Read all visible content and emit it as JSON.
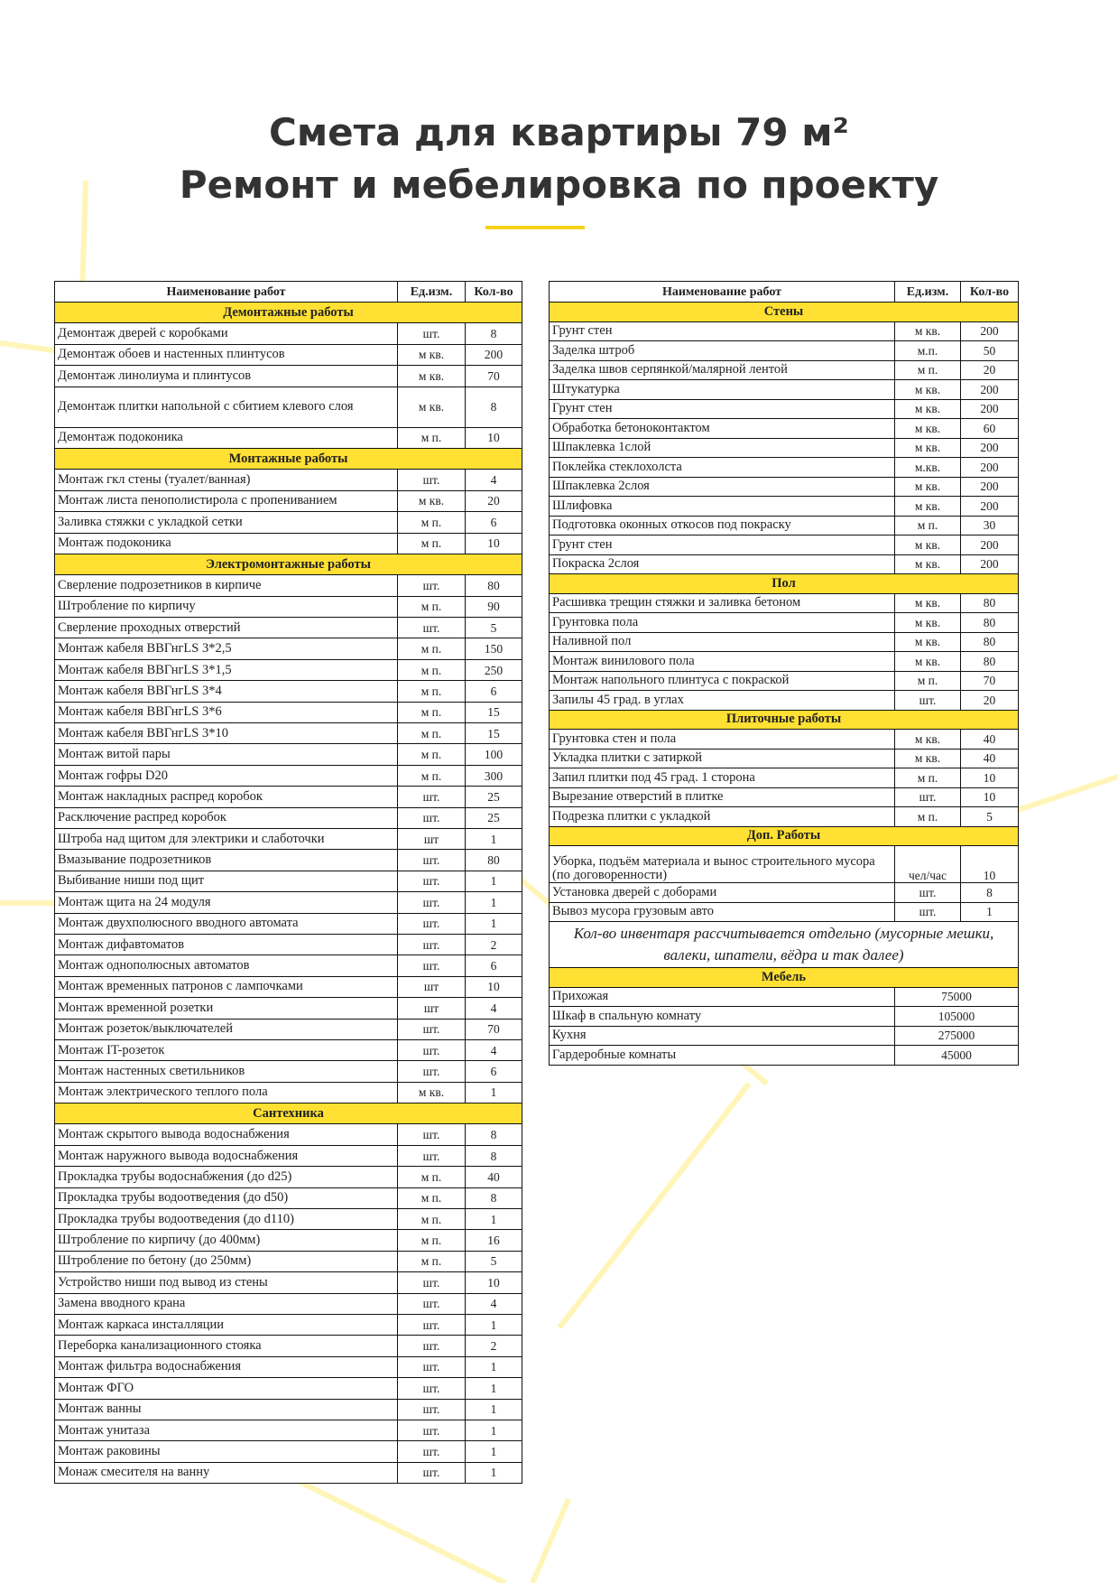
{
  "title_line1": "Смета для квартиры 79 м²",
  "title_line2": "Ремонт и мебелировка по проекту",
  "colors": {
    "accent_yellow": "#ffe033",
    "title": "#333333",
    "bg_lines": "#fff5b8"
  },
  "headers": {
    "name": "Наименование работ",
    "unit": "Ед.изм.",
    "qty": "Кол-во"
  },
  "left_sections": [
    {
      "title": "Демонтажные работы",
      "rows": [
        [
          "Демонтаж дверей с коробками",
          "шт.",
          "8"
        ],
        [
          "Демонтаж обоев и настенных плинтусов",
          "м кв.",
          "200"
        ],
        [
          "Демонтаж линолиума и плинтусов",
          "м кв.",
          "70"
        ],
        [
          "Демонтаж плитки напольной с сбитием клевого слоя",
          "м кв.",
          "8"
        ],
        [
          "Демонтаж подоконика",
          "м п.",
          "10"
        ]
      ]
    },
    {
      "title": "Монтажные работы",
      "rows": [
        [
          "Монтаж гкл стены (туалет/ванная)",
          "шт.",
          "4"
        ],
        [
          "Монтаж листа пенополистирола с пропениванием",
          "м кв.",
          "20"
        ],
        [
          "Заливка стяжки с укладкой сетки",
          "м п.",
          "6"
        ],
        [
          "Монтаж подоконика",
          "м п.",
          "10"
        ]
      ]
    },
    {
      "title": "Электромонтажные работы",
      "rows": [
        [
          "Сверление подрозетников в кирпиче",
          "шт.",
          "80"
        ],
        [
          "Штробление по кирпичу",
          "м п.",
          "90"
        ],
        [
          "Сверление проходных отверстий",
          "шт.",
          "5"
        ],
        [
          "Монтаж кабеля ВВГнгLS 3*2,5",
          "м п.",
          "150"
        ],
        [
          "Монтаж кабеля ВВГнгLS 3*1,5",
          "м п.",
          "250"
        ],
        [
          "Монтаж кабеля ВВГнгLS 3*4",
          "м п.",
          "6"
        ],
        [
          "Монтаж кабеля ВВГнгLS 3*6",
          "м п.",
          "15"
        ],
        [
          "Монтаж кабеля ВВГнгLS 3*10",
          "м п.",
          "15"
        ],
        [
          "Монтаж витой пары",
          "м п.",
          "100"
        ],
        [
          "Монтаж гофры D20",
          "м п.",
          "300"
        ],
        [
          "Монтаж накладных распред коробок",
          "шт.",
          "25"
        ],
        [
          "Расключение распред коробок",
          "шт.",
          "25"
        ],
        [
          "Штроба над щитом для электрики и слаботочки",
          "шт",
          "1"
        ],
        [
          "Вмазывание подрозетников",
          "шт.",
          "80"
        ],
        [
          "Выбивание ниши под щит",
          "шт.",
          "1"
        ],
        [
          "Монтаж щита на 24 модуля",
          "шт.",
          "1"
        ],
        [
          "Монтаж двухполюсного вводного автомата",
          "шт.",
          "1"
        ],
        [
          "Монтаж дифавтоматов",
          "шт.",
          "2"
        ],
        [
          "Монтаж однополюсных автоматов",
          "шт.",
          "6"
        ],
        [
          "Монтаж временных патронов с лампочками",
          "шт",
          "10"
        ],
        [
          "Монтаж временной розетки",
          "шт",
          "4"
        ],
        [
          "Монтаж розеток/выключателей",
          "шт.",
          "70"
        ],
        [
          "Монтаж IT-розеток",
          "шт.",
          "4"
        ],
        [
          "Монтаж настенных светильников",
          "шт.",
          "6"
        ],
        [
          "Монтаж электрического теплого пола",
          "м кв.",
          "1"
        ]
      ]
    },
    {
      "title": "Сантехника",
      "rows": [
        [
          "Монтаж скрытого вывода водоснабжения",
          "шт.",
          "8"
        ],
        [
          "Монтаж наружного вывода водоснабжения",
          "шт.",
          "8"
        ],
        [
          "Прокладка трубы водоснабжения (до d25)",
          "м п.",
          "40"
        ],
        [
          "Прокладка трубы водоотведения (до d50)",
          "м п.",
          "8"
        ],
        [
          "Прокладка трубы водоотведения (до d110)",
          "м п.",
          "1"
        ],
        [
          "Штробление по кирпичу (до 400мм)",
          "м п.",
          "16"
        ],
        [
          "Штробление по бетону (до 250мм)",
          "м п.",
          "5"
        ],
        [
          "Устройство ниши под вывод из стены",
          "шт.",
          "10"
        ],
        [
          "Замена вводного крана",
          "шт.",
          "4"
        ],
        [
          "Монтаж каркаса инсталляции",
          "шт.",
          "1"
        ],
        [
          "Переборка канализационного стояка",
          "шт.",
          "2"
        ],
        [
          "Монтаж фильтра водоснабжения",
          "шт.",
          "1"
        ],
        [
          "Монтаж ФГО",
          "шт.",
          "1"
        ],
        [
          "Монтаж ванны",
          "шт.",
          "1"
        ],
        [
          "Монтаж унитаза",
          "шт.",
          "1"
        ],
        [
          "Монтаж раковины",
          "шт.",
          "1"
        ],
        [
          "Монаж смесителя на ванну",
          "шт.",
          "1"
        ]
      ]
    }
  ],
  "right_sections": [
    {
      "title": "Стены",
      "rows": [
        [
          "Грунт стен",
          "м кв.",
          "200"
        ],
        [
          "Заделка штроб",
          "м.п.",
          "50"
        ],
        [
          "Заделка швов серпянкой/малярной лентой",
          "м п.",
          "20"
        ],
        [
          "Штукатурка",
          "м кв.",
          "200"
        ],
        [
          "Грунт стен",
          "м кв.",
          "200"
        ],
        [
          "Обработка бетоноконтактом",
          "м кв.",
          "60"
        ],
        [
          "Шпаклевка 1слой",
          "м кв.",
          "200"
        ],
        [
          "Поклейка стеклохолста",
          "м.кв.",
          "200"
        ],
        [
          "Шпаклевка 2слоя",
          "м кв.",
          "200"
        ],
        [
          "Шлифовка",
          "м кв.",
          "200"
        ],
        [
          "Подготовка оконных откосов под покраску",
          "м п.",
          "30"
        ],
        [
          "Грунт стен",
          "м кв.",
          "200"
        ],
        [
          "Покраска 2слоя",
          "м кв.",
          "200"
        ]
      ]
    },
    {
      "title": "Пол",
      "rows": [
        [
          "Расшивка трещин стяжки и заливка бетоном",
          "м кв.",
          "80"
        ],
        [
          "Грунтовка пола",
          "м кв.",
          "80"
        ],
        [
          "Наливной пол",
          "м кв.",
          "80"
        ],
        [
          "Монтаж винилового пола",
          "м кв.",
          "80"
        ],
        [
          "Монтаж напольного плинтуса с покраской",
          "м п.",
          "70"
        ],
        [
          "Запилы 45 град. в углах",
          "шт.",
          "20"
        ]
      ]
    },
    {
      "title": "Плиточные работы",
      "rows": [
        [
          "Грунтовка стен и пола",
          "м кв.",
          "40"
        ],
        [
          "Укладка плитки с затиркой",
          "м кв.",
          "40"
        ],
        [
          "Запил плитки под 45 град. 1 сторона",
          "м п.",
          "10"
        ],
        [
          "Вырезание отверстий в плитке",
          "шт.",
          "10"
        ],
        [
          "Подрезка плитки с укладкой",
          "м п.",
          "5"
        ]
      ]
    },
    {
      "title": "Доп. Работы",
      "rows": [
        [
          "Уборка, подъём материала и вынос строительного мусора (по договоренности)",
          "чел/час",
          "10"
        ],
        [
          "Установка дверей с доборами",
          "шт.",
          "8"
        ],
        [
          "Вывоз мусора грузовым авто",
          "шт.",
          "1"
        ]
      ]
    }
  ],
  "note": "Кол-во инвентаря рассчитывается отдельно (мусорные мешки, валеки, шпатели, вёдра и так далее)",
  "furniture": {
    "title": "Мебель",
    "rows": [
      [
        "Прихожая",
        "75000"
      ],
      [
        "Шкаф в спальную комнату",
        "105000"
      ],
      [
        "Кухня",
        "275000"
      ],
      [
        "Гардеробные комнаты",
        "45000"
      ]
    ]
  }
}
